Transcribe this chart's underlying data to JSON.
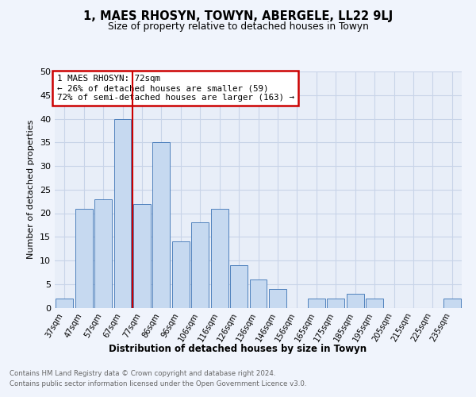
{
  "title1": "1, MAES RHOSYN, TOWYN, ABERGELE, LL22 9LJ",
  "title2": "Size of property relative to detached houses in Towyn",
  "xlabel": "Distribution of detached houses by size in Towyn",
  "ylabel": "Number of detached properties",
  "categories": [
    "37sqm",
    "47sqm",
    "57sqm",
    "67sqm",
    "77sqm",
    "86sqm",
    "96sqm",
    "106sqm",
    "116sqm",
    "126sqm",
    "136sqm",
    "146sqm",
    "156sqm",
    "165sqm",
    "175sqm",
    "185sqm",
    "195sqm",
    "205sqm",
    "215sqm",
    "225sqm",
    "235sqm"
  ],
  "values": [
    2,
    21,
    23,
    40,
    22,
    35,
    14,
    18,
    21,
    9,
    6,
    4,
    0,
    2,
    2,
    3,
    2,
    0,
    0,
    0,
    2
  ],
  "bar_color": "#c6d9f0",
  "bar_edge_color": "#4f81bd",
  "vline_x": 3.5,
  "vline_color": "#cc0000",
  "annotation_line1": "1 MAES RHOSYN: 72sqm",
  "annotation_line2": "← 26% of detached houses are smaller (59)",
  "annotation_line3": "72% of semi-detached houses are larger (163) →",
  "annotation_box_color": "#cc0000",
  "ylim": [
    0,
    50
  ],
  "yticks": [
    0,
    5,
    10,
    15,
    20,
    25,
    30,
    35,
    40,
    45,
    50
  ],
  "background_color": "#f0f4fc",
  "axes_background": "#e8eef8",
  "grid_color": "#c8d4e8",
  "footer1": "Contains HM Land Registry data © Crown copyright and database right 2024.",
  "footer2": "Contains public sector information licensed under the Open Government Licence v3.0."
}
